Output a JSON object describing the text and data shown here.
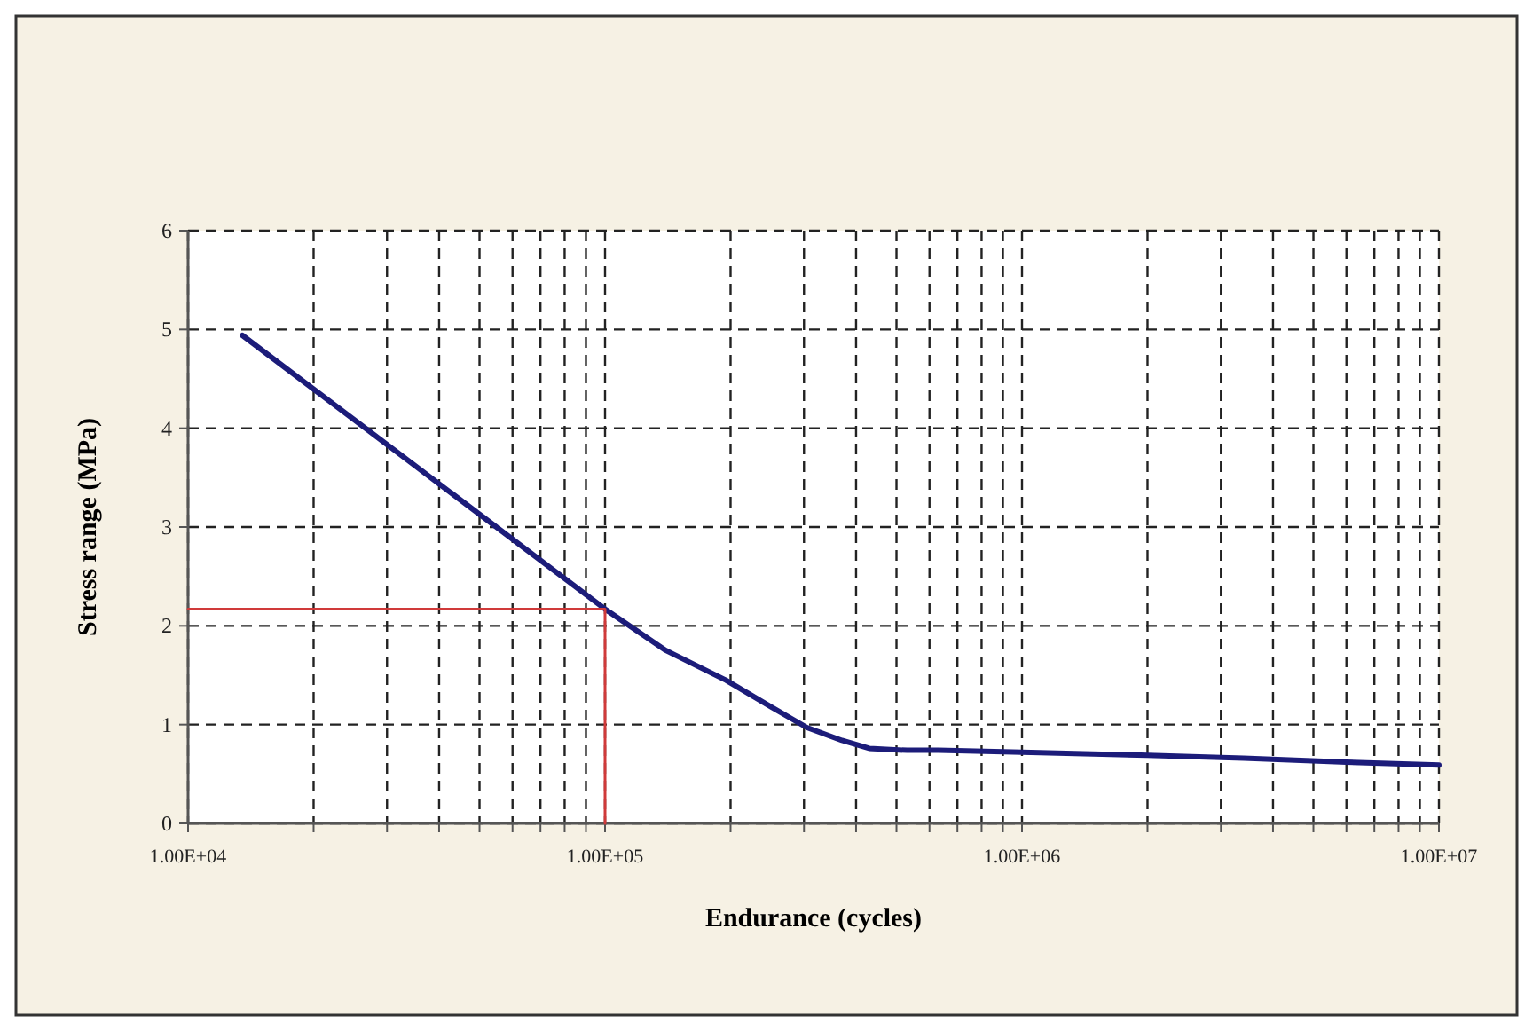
{
  "chart_data": {
    "type": "line",
    "xlabel": "Endurance (cycles)",
    "ylabel": "Stress range (MPa)",
    "log": "x",
    "grid": true,
    "marker": "none",
    "line_style": "solid",
    "xlim": [
      10000,
      10000000
    ],
    "xticks": [
      {
        "value": 10000,
        "label": "1.00E+04"
      },
      {
        "value": 20000,
        "label": null
      },
      {
        "value": 30000,
        "label": null
      },
      {
        "value": 40000,
        "label": null
      },
      {
        "value": 50000,
        "label": null
      },
      {
        "value": 60000,
        "label": null
      },
      {
        "value": 70000,
        "label": null
      },
      {
        "value": 80000,
        "label": null
      },
      {
        "value": 90000,
        "label": null
      },
      {
        "value": 100000,
        "label": "1.00E+05"
      },
      {
        "value": 200000,
        "label": null
      },
      {
        "value": 300000,
        "label": null
      },
      {
        "value": 400000,
        "label": null
      },
      {
        "value": 500000,
        "label": null
      },
      {
        "value": 600000,
        "label": null
      },
      {
        "value": 700000,
        "label": null
      },
      {
        "value": 800000,
        "label": null
      },
      {
        "value": 900000,
        "label": null
      },
      {
        "value": 1000000,
        "label": "1.00E+06"
      },
      {
        "value": 2000000,
        "label": null
      },
      {
        "value": 3000000,
        "label": null
      },
      {
        "value": 4000000,
        "label": null
      },
      {
        "value": 5000000,
        "label": null
      },
      {
        "value": 6000000,
        "label": null
      },
      {
        "value": 7000000,
        "label": null
      },
      {
        "value": 8000000,
        "label": null
      },
      {
        "value": 9000000,
        "label": null
      },
      {
        "value": 10000000,
        "label": "1.00E+07"
      }
    ],
    "ylim": [
      0,
      6
    ],
    "yticks": [
      0,
      1,
      2,
      3,
      4,
      5,
      6
    ],
    "series": [
      {
        "color": "#1c1c7a",
        "x": [
          13500,
          100000,
          140000,
          195000,
          250000,
          305000,
          370000,
          430000,
          530000,
          630000,
          1000000,
          2000000,
          3400000,
          6000000,
          10000000
        ],
        "values": [
          4.94,
          2.17,
          1.75,
          1.45,
          1.18,
          0.97,
          0.84,
          0.76,
          0.74,
          0.74,
          0.72,
          0.69,
          0.66,
          0.62,
          0.59
        ]
      },
      {
        "color": "#d03a3a",
        "x": [
          10000,
          100000,
          100000
        ],
        "values": [
          2.17,
          2.17,
          0
        ]
      }
    ]
  }
}
